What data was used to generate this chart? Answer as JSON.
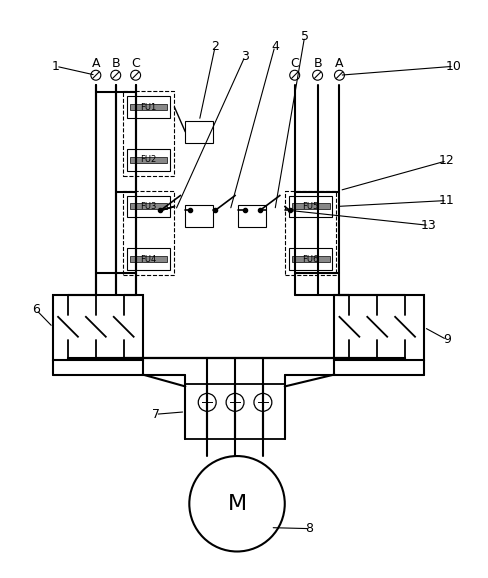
{
  "background_color": "#ffffff",
  "line_color": "#000000",
  "fig_width": 4.88,
  "fig_height": 5.78,
  "phase_left": [
    "A",
    "B",
    "C"
  ],
  "phase_right": [
    "C",
    "B",
    "A"
  ],
  "fuse_labels_left_top": [
    "FU1",
    "FU2"
  ],
  "fuse_labels_left_bot": [
    "FU3",
    "FU4"
  ],
  "fuse_labels_right": [
    "FU5",
    "FU6"
  ],
  "motor_label": "M",
  "number_labels": [
    "1",
    "2",
    "3",
    "4",
    "5",
    "6",
    "7",
    "8",
    "9",
    "10",
    "11",
    "12",
    "13"
  ]
}
